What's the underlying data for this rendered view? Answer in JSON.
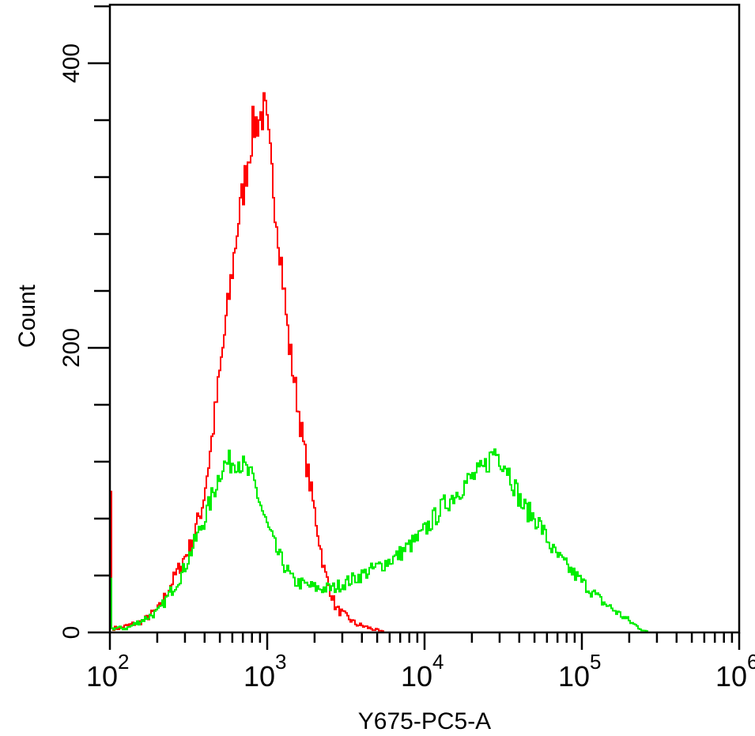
{
  "chart_data": {
    "type": "line",
    "title": "",
    "xlabel": "Y675-PC5-A",
    "ylabel": "Count",
    "xscale": "log",
    "xlim_log10": [
      2,
      6
    ],
    "ylim": [
      0,
      440
    ],
    "x_tick_labels": [
      {
        "base": "10",
        "exp": "2",
        "log10": 2
      },
      {
        "base": "10",
        "exp": "3",
        "log10": 3
      },
      {
        "base": "10",
        "exp": "4",
        "log10": 4
      },
      {
        "base": "10",
        "exp": "5",
        "log10": 5
      },
      {
        "base": "10",
        "exp": "6",
        "log10": 6
      }
    ],
    "y_tick_labels": [
      {
        "label": "0",
        "value": 0
      },
      {
        "label": "200",
        "value": 200
      },
      {
        "label": "400",
        "value": 400
      }
    ],
    "y_minor_step": 40,
    "grid": false,
    "series": [
      {
        "name": "red",
        "color": "#ff0000",
        "log10_x": [
          2.0,
          2.01,
          2.055,
          2.206,
          2.307,
          2.407,
          2.508,
          2.583,
          2.628,
          2.678,
          2.804,
          2.905,
          2.98,
          3.03,
          3.08,
          3.131,
          3.181,
          3.231,
          3.307,
          3.357,
          3.432,
          3.558,
          3.709,
          3.75
        ],
        "counts": [
          99,
          3,
          3,
          8,
          17,
          39,
          61,
          89,
          122,
          167,
          283,
          355,
          367,
          317,
          267,
          205,
          167,
          128,
          78,
          44,
          17,
          6,
          1,
          0
        ]
      },
      {
        "name": "green",
        "color": "#00ee00",
        "log10_x": [
          2.0,
          2.01,
          2.106,
          2.307,
          2.457,
          2.608,
          2.709,
          2.809,
          2.91,
          2.985,
          3.06,
          3.161,
          3.312,
          3.412,
          3.513,
          3.663,
          3.814,
          3.965,
          4.116,
          4.266,
          4.367,
          4.442,
          4.518,
          4.618,
          4.719,
          4.819,
          4.92,
          5.02,
          5.121,
          5.221,
          5.322,
          5.397,
          5.42
        ],
        "counts": [
          38,
          3,
          3,
          15,
          42,
          83,
          117,
          122,
          106,
          78,
          56,
          36,
          31,
          31,
          36,
          44,
          53,
          67,
          89,
          106,
          114,
          128,
          117,
          89,
          78,
          56,
          44,
          33,
          22,
          14,
          6,
          1,
          0
        ]
      }
    ]
  }
}
